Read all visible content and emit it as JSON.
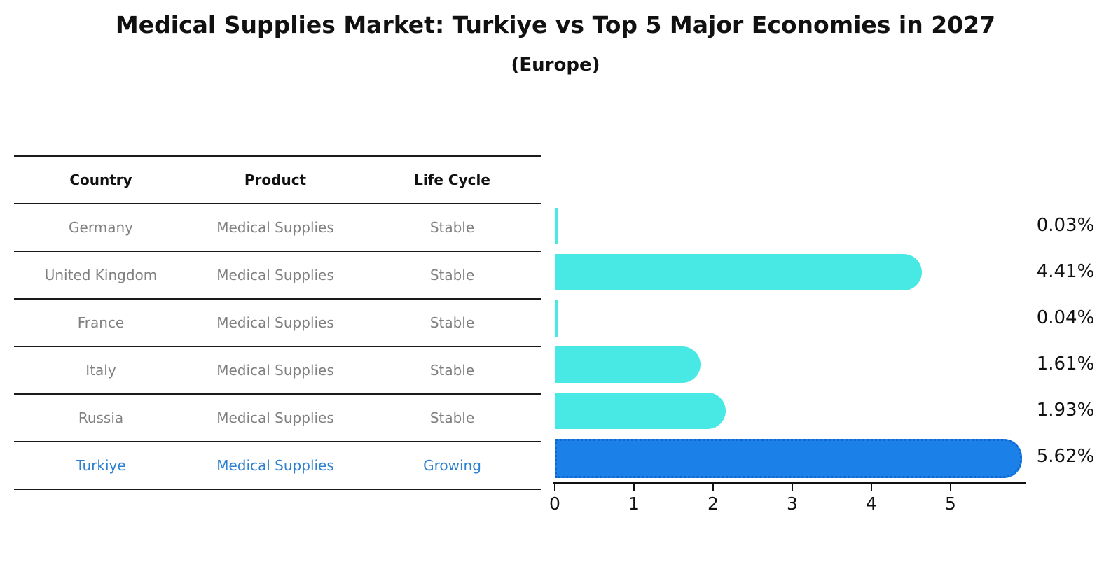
{
  "title": "Medical Supplies Market: Turkiye vs Top 5 Major Economies in 2027",
  "subtitle": "(Europe)",
  "table": {
    "headers": [
      "Country",
      "Product",
      "Life Cycle"
    ],
    "rows": [
      {
        "country": "Germany",
        "product": "Medical Supplies",
        "life_cycle": "Stable",
        "highlight": false
      },
      {
        "country": "United Kingdom",
        "product": "Medical Supplies",
        "life_cycle": "Stable",
        "highlight": false
      },
      {
        "country": "France",
        "product": "Medical Supplies",
        "life_cycle": "Stable",
        "highlight": false
      },
      {
        "country": "Italy",
        "product": "Medical Supplies",
        "life_cycle": "Stable",
        "highlight": false
      },
      {
        "country": "Russia",
        "product": "Medical Supplies",
        "life_cycle": "Stable",
        "highlight": false
      },
      {
        "country": "Turkiye",
        "product": "Medical Supplies",
        "life_cycle": "Growing",
        "highlight": true
      }
    ]
  },
  "chart_data": {
    "type": "bar",
    "orientation": "horizontal",
    "title": "Medical Supplies Market: Turkiye vs Top 5 Major Economies in 2027",
    "subtitle": "(Europe)",
    "categories": [
      "Germany",
      "United Kingdom",
      "France",
      "Italy",
      "Russia",
      "Turkiye"
    ],
    "values": [
      0.03,
      4.41,
      0.04,
      1.61,
      1.93,
      5.62
    ],
    "value_labels": [
      "0.03%",
      "4.41%",
      "0.04%",
      "1.61%",
      "1.93%",
      "5.62%"
    ],
    "x_ticks": [
      "0",
      "1",
      "2",
      "3",
      "4",
      "5"
    ],
    "xlim": [
      0,
      5.95
    ],
    "grid": false,
    "legend": "none",
    "highlight_index": 5,
    "bar_color": "#48e8e4",
    "highlight_color": "#1b80e8",
    "highlight_text_color": "#2e80d0"
  }
}
